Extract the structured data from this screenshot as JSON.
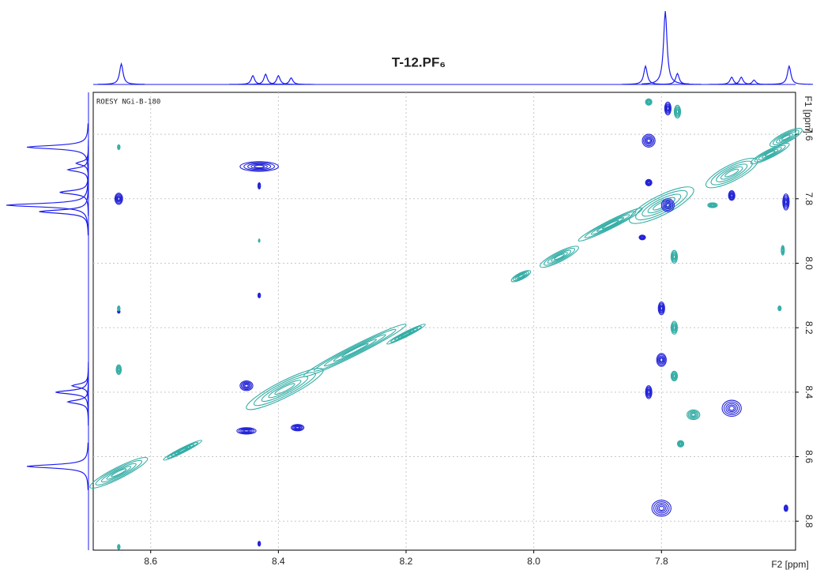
{
  "chart_data": {
    "type": "contour2d",
    "title": "T-12.PF₆",
    "annotation": "ROESY NGi-B-180",
    "x_label": "F2 [ppm]",
    "y_label": "F1 [ppm]",
    "xlim": [
      8.69,
      7.59
    ],
    "ylim": [
      7.47,
      8.89
    ],
    "xticks": [
      8.6,
      8.4,
      8.2,
      {
        "value": 8,
        "label": "8.0"
      },
      7.8
    ],
    "yticks": [
      7.6,
      7.8,
      {
        "value": 8,
        "label": "8.0"
      },
      8.2,
      8.4,
      8.6,
      8.8
    ],
    "grid": true,
    "positive_color": "#2323d8",
    "negative_color": "#35aea6",
    "projection_color": "#1c1cf0",
    "diagonal_peaks": {
      "x": [
        8.65,
        8.55,
        8.39,
        8.28,
        8.2,
        8.02,
        7.96,
        7.88,
        7.8,
        7.69,
        7.63,
        7.605
      ],
      "y": [
        8.65,
        8.58,
        8.39,
        8.27,
        8.22,
        8.04,
        7.98,
        7.88,
        7.82,
        7.72,
        7.66,
        7.61
      ],
      "w": [
        0.09,
        0.06,
        0.12,
        0.16,
        0.06,
        0.03,
        0.06,
        0.1,
        0.1,
        0.08,
        0.06,
        0.05
      ],
      "h": [
        0.035,
        0.015,
        0.05,
        0.03,
        0.015,
        0.02,
        0.03,
        0.025,
        0.06,
        0.05,
        0.025,
        0.03
      ]
    },
    "positive_peaks": {
      "x": [
        8.65,
        8.65,
        8.43,
        8.43,
        8.45,
        8.45,
        8.37,
        8.43,
        8.43,
        7.82,
        7.79,
        7.82,
        7.79,
        7.8,
        7.8,
        7.82,
        7.8,
        7.69,
        7.69,
        7.605,
        7.605,
        7.83
      ],
      "y": [
        7.8,
        8.15,
        7.7,
        7.76,
        8.38,
        8.52,
        8.51,
        8.1,
        8.87,
        7.62,
        7.52,
        7.75,
        7.82,
        8.14,
        8.3,
        8.4,
        8.76,
        8.45,
        7.79,
        7.81,
        8.76,
        7.92
      ],
      "w": [
        0.012,
        0.004,
        0.06,
        0.004,
        0.02,
        0.03,
        0.02,
        0.004,
        0.004,
        0.02,
        0.01,
        0.01,
        0.02,
        0.01,
        0.015,
        0.01,
        0.03,
        0.03,
        0.01,
        0.01,
        0.006,
        0.01
      ],
      "h": [
        0.035,
        0.01,
        0.03,
        0.02,
        0.03,
        0.02,
        0.02,
        0.015,
        0.015,
        0.04,
        0.04,
        0.02,
        0.04,
        0.04,
        0.04,
        0.04,
        0.05,
        0.05,
        0.03,
        0.05,
        0.02,
        0.015
      ]
    },
    "negative_peaks": {
      "x": [
        8.65,
        8.65,
        8.65,
        8.65,
        8.43,
        7.82,
        7.775,
        7.78,
        7.78,
        7.78,
        7.75,
        7.77,
        7.61,
        7.615,
        7.72
      ],
      "y": [
        7.64,
        8.14,
        8.33,
        8.88,
        7.93,
        7.5,
        7.53,
        7.98,
        8.2,
        8.35,
        8.47,
        8.56,
        7.96,
        8.14,
        7.82
      ],
      "w": [
        0.004,
        0.004,
        0.008,
        0.004,
        0.002,
        0.01,
        0.01,
        0.01,
        0.01,
        0.01,
        0.02,
        0.01,
        0.005,
        0.005,
        0.015
      ],
      "h": [
        0.015,
        0.015,
        0.03,
        0.015,
        0.01,
        0.02,
        0.04,
        0.04,
        0.04,
        0.03,
        0.03,
        0.02,
        0.03,
        0.015,
        0.015
      ]
    },
    "top_projection": {
      "x": [
        8.646,
        8.44,
        8.42,
        8.4,
        8.38,
        7.825,
        7.794,
        7.775,
        7.69,
        7.675,
        7.655,
        7.6
      ],
      "height": [
        28,
        12,
        14,
        12,
        9,
        25,
        100,
        15,
        10,
        10,
        6,
        25
      ]
    },
    "left_projection": {
      "y": [
        7.64,
        7.69,
        7.71,
        7.78,
        7.82,
        7.84,
        8.38,
        8.4,
        8.43,
        8.63
      ],
      "height": [
        75,
        15,
        25,
        35,
        100,
        60,
        20,
        40,
        25,
        75
      ]
    }
  }
}
